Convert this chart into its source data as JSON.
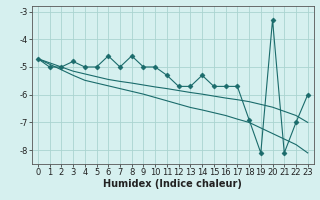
{
  "x": [
    0,
    1,
    2,
    3,
    4,
    5,
    6,
    7,
    8,
    9,
    10,
    11,
    12,
    13,
    14,
    15,
    16,
    17,
    18,
    19,
    20,
    21,
    22,
    23
  ],
  "y_main": [
    -4.7,
    -5.0,
    -5.0,
    -4.8,
    -5.0,
    -5.0,
    -4.6,
    -5.0,
    -4.6,
    -5.0,
    -5.0,
    -5.3,
    -5.7,
    -5.7,
    -5.3,
    -5.7,
    -5.7,
    -5.7,
    -6.9,
    -8.1,
    -3.3,
    -8.1,
    -7.0,
    -6.0
  ],
  "y_line1": [
    -4.7,
    -4.85,
    -5.0,
    -5.15,
    -5.25,
    -5.35,
    -5.45,
    -5.52,
    -5.58,
    -5.65,
    -5.72,
    -5.78,
    -5.85,
    -5.92,
    -5.98,
    -6.05,
    -6.12,
    -6.18,
    -6.25,
    -6.35,
    -6.45,
    -6.6,
    -6.75,
    -7.0
  ],
  "y_line2": [
    -4.7,
    -4.9,
    -5.1,
    -5.3,
    -5.48,
    -5.58,
    -5.68,
    -5.78,
    -5.88,
    -5.98,
    -6.1,
    -6.22,
    -6.34,
    -6.46,
    -6.55,
    -6.65,
    -6.75,
    -6.88,
    -7.0,
    -7.2,
    -7.4,
    -7.6,
    -7.8,
    -8.1
  ],
  "color": "#1a6b6b",
  "bg_color": "#d6f0ef",
  "grid_color": "#aad4d0",
  "xlabel": "Humidex (Indice chaleur)",
  "ylim": [
    -8.5,
    -2.8
  ],
  "xlim": [
    -0.5,
    23.5
  ],
  "yticks": [
    -8,
    -7,
    -6,
    -5,
    -4,
    -3
  ],
  "xticks": [
    0,
    1,
    2,
    3,
    4,
    5,
    6,
    7,
    8,
    9,
    10,
    11,
    12,
    13,
    14,
    15,
    16,
    17,
    18,
    19,
    20,
    21,
    22,
    23
  ],
  "markersize": 2.5,
  "linewidth": 0.8,
  "xlabel_fontsize": 7,
  "tick_fontsize": 6
}
